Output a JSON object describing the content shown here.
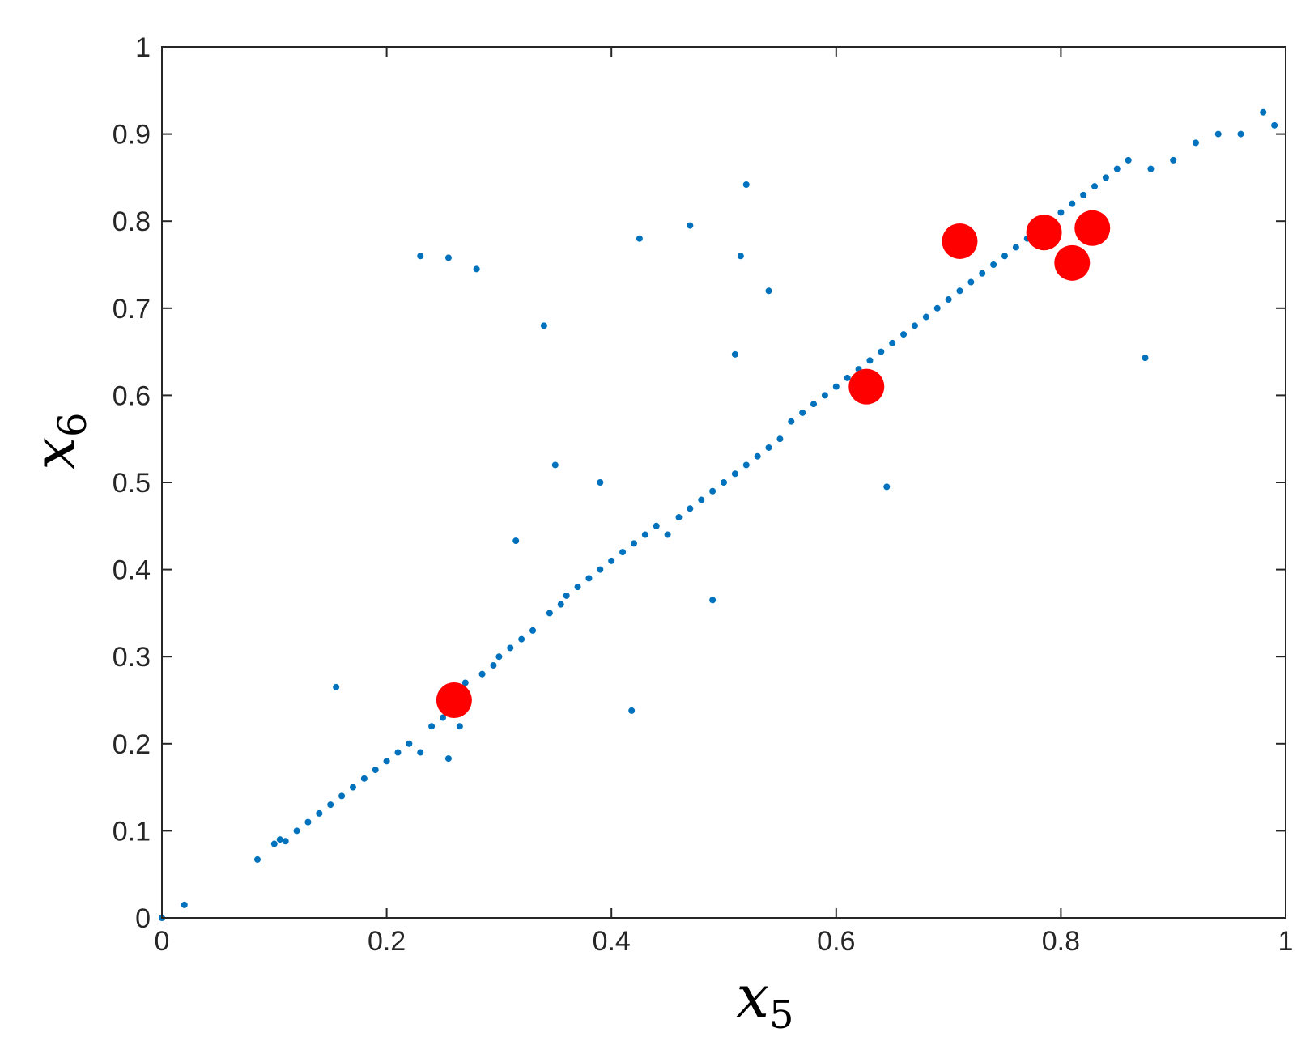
{
  "chart_data": {
    "type": "scatter",
    "title": "",
    "xlabel": "x",
    "xlabel_subscript": "5",
    "ylabel": "x",
    "ylabel_subscript": "6",
    "xlim": [
      0,
      1
    ],
    "ylim": [
      0,
      1
    ],
    "xticks": [
      0,
      0.2,
      0.4,
      0.6,
      0.8,
      1
    ],
    "xtick_labels": [
      "0",
      "0.2",
      "0.4",
      "0.6",
      "0.8",
      "1"
    ],
    "yticks": [
      0,
      0.1,
      0.2,
      0.3,
      0.4,
      0.5,
      0.6,
      0.7,
      0.8,
      0.9,
      1
    ],
    "ytick_labels": [
      "0",
      "0.1",
      "0.2",
      "0.3",
      "0.4",
      "0.5",
      "0.6",
      "0.7",
      "0.8",
      "0.9",
      "1"
    ],
    "grid": false,
    "box": true,
    "series": [
      {
        "color": "#0072bd",
        "marker": "dot",
        "points": [
          [
            0.0,
            0.0
          ],
          [
            0.02,
            0.015
          ],
          [
            0.085,
            0.067
          ],
          [
            0.1,
            0.085
          ],
          [
            0.105,
            0.09
          ],
          [
            0.11,
            0.088
          ],
          [
            0.12,
            0.1
          ],
          [
            0.13,
            0.11
          ],
          [
            0.14,
            0.12
          ],
          [
            0.15,
            0.13
          ],
          [
            0.155,
            0.265
          ],
          [
            0.16,
            0.14
          ],
          [
            0.17,
            0.15
          ],
          [
            0.18,
            0.16
          ],
          [
            0.19,
            0.17
          ],
          [
            0.2,
            0.18
          ],
          [
            0.21,
            0.19
          ],
          [
            0.22,
            0.2
          ],
          [
            0.23,
            0.19
          ],
          [
            0.23,
            0.76
          ],
          [
            0.24,
            0.22
          ],
          [
            0.25,
            0.23
          ],
          [
            0.255,
            0.183
          ],
          [
            0.255,
            0.758
          ],
          [
            0.265,
            0.22
          ],
          [
            0.27,
            0.27
          ],
          [
            0.28,
            0.745
          ],
          [
            0.285,
            0.28
          ],
          [
            0.295,
            0.29
          ],
          [
            0.3,
            0.3
          ],
          [
            0.31,
            0.31
          ],
          [
            0.315,
            0.433
          ],
          [
            0.32,
            0.32
          ],
          [
            0.33,
            0.33
          ],
          [
            0.34,
            0.68
          ],
          [
            0.345,
            0.35
          ],
          [
            0.35,
            0.52
          ],
          [
            0.355,
            0.36
          ],
          [
            0.36,
            0.37
          ],
          [
            0.37,
            0.38
          ],
          [
            0.38,
            0.39
          ],
          [
            0.39,
            0.4
          ],
          [
            0.39,
            0.5
          ],
          [
            0.4,
            0.41
          ],
          [
            0.41,
            0.42
          ],
          [
            0.418,
            0.238
          ],
          [
            0.42,
            0.43
          ],
          [
            0.425,
            0.78
          ],
          [
            0.43,
            0.44
          ],
          [
            0.44,
            0.45
          ],
          [
            0.45,
            0.44
          ],
          [
            0.46,
            0.46
          ],
          [
            0.47,
            0.795
          ],
          [
            0.47,
            0.47
          ],
          [
            0.48,
            0.48
          ],
          [
            0.49,
            0.365
          ],
          [
            0.49,
            0.49
          ],
          [
            0.5,
            0.5
          ],
          [
            0.51,
            0.51
          ],
          [
            0.51,
            0.647
          ],
          [
            0.515,
            0.76
          ],
          [
            0.52,
            0.842
          ],
          [
            0.52,
            0.52
          ],
          [
            0.53,
            0.53
          ],
          [
            0.54,
            0.72
          ],
          [
            0.54,
            0.54
          ],
          [
            0.55,
            0.55
          ],
          [
            0.56,
            0.57
          ],
          [
            0.57,
            0.58
          ],
          [
            0.58,
            0.59
          ],
          [
            0.59,
            0.6
          ],
          [
            0.6,
            0.61
          ],
          [
            0.61,
            0.62
          ],
          [
            0.62,
            0.63
          ],
          [
            0.63,
            0.64
          ],
          [
            0.64,
            0.65
          ],
          [
            0.645,
            0.495
          ],
          [
            0.65,
            0.66
          ],
          [
            0.66,
            0.67
          ],
          [
            0.67,
            0.68
          ],
          [
            0.68,
            0.69
          ],
          [
            0.69,
            0.7
          ],
          [
            0.7,
            0.71
          ],
          [
            0.71,
            0.72
          ],
          [
            0.72,
            0.73
          ],
          [
            0.73,
            0.74
          ],
          [
            0.74,
            0.75
          ],
          [
            0.75,
            0.76
          ],
          [
            0.76,
            0.77
          ],
          [
            0.77,
            0.78
          ],
          [
            0.78,
            0.79
          ],
          [
            0.79,
            0.8
          ],
          [
            0.8,
            0.81
          ],
          [
            0.81,
            0.82
          ],
          [
            0.82,
            0.83
          ],
          [
            0.83,
            0.84
          ],
          [
            0.84,
            0.85
          ],
          [
            0.85,
            0.86
          ],
          [
            0.86,
            0.87
          ],
          [
            0.875,
            0.643
          ],
          [
            0.88,
            0.86
          ],
          [
            0.9,
            0.87
          ],
          [
            0.92,
            0.89
          ],
          [
            0.94,
            0.9
          ],
          [
            0.96,
            0.9
          ],
          [
            0.98,
            0.925
          ],
          [
            0.99,
            0.91
          ]
        ]
      },
      {
        "color": "#ff0000",
        "marker": "large-circle",
        "points": [
          [
            0.26,
            0.25
          ],
          [
            0.627,
            0.61
          ],
          [
            0.71,
            0.777
          ],
          [
            0.785,
            0.787
          ],
          [
            0.81,
            0.752
          ],
          [
            0.828,
            0.792
          ]
        ]
      }
    ]
  }
}
